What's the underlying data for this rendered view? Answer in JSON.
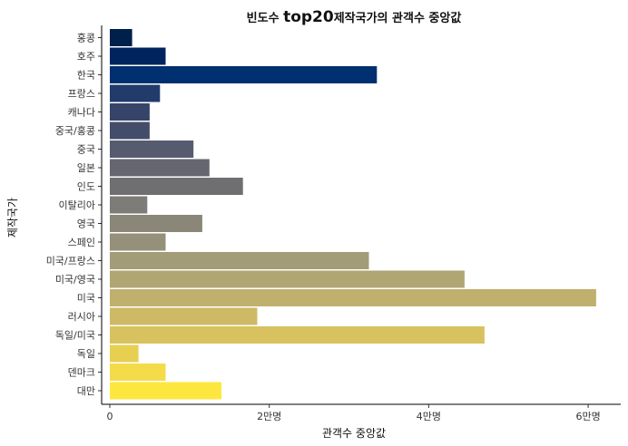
{
  "chart_data": {
    "type": "bar",
    "orientation": "horizontal",
    "title_prefix": "빈도수 ",
    "title_emphasis": "top20",
    "title_suffix": "제작국가의 관객수 중앙값",
    "xlabel": "관객수 중앙값",
    "ylabel": "제작국가",
    "xlim": [
      0,
      63000
    ],
    "xticks": [
      {
        "value": 0,
        "label": "0"
      },
      {
        "value": 20000,
        "label": "2만명"
      },
      {
        "value": 40000,
        "label": "4만명"
      },
      {
        "value": 60000,
        "label": "6만명"
      }
    ],
    "grid": false,
    "categories": [
      "홍콩",
      "호주",
      "한국",
      "프랑스",
      "캐나다",
      "중국/홍콩",
      "중국",
      "일본",
      "인도",
      "이탈리아",
      "영국",
      "스페인",
      "미국/프랑스",
      "미국/영국",
      "미국",
      "러시아",
      "독일/미국",
      "독일",
      "덴마크",
      "대만"
    ],
    "values": [
      2800,
      7000,
      33500,
      6300,
      5000,
      5000,
      10500,
      12500,
      16700,
      4700,
      11600,
      7000,
      32500,
      44500,
      61000,
      18500,
      47000,
      3600,
      7000,
      14000
    ],
    "colors": [
      "#00204c",
      "#00245e",
      "#00306f",
      "#213b6b",
      "#37446a",
      "#444c6b",
      "#565b6f",
      "#666670",
      "#6f6f72",
      "#7d7c78",
      "#8a8779",
      "#949079",
      "#a39c78",
      "#b0a674",
      "#bfb06d",
      "#cdb966",
      "#d7c25f",
      "#e7cf51",
      "#f4db4a",
      "#fde73f"
    ]
  }
}
